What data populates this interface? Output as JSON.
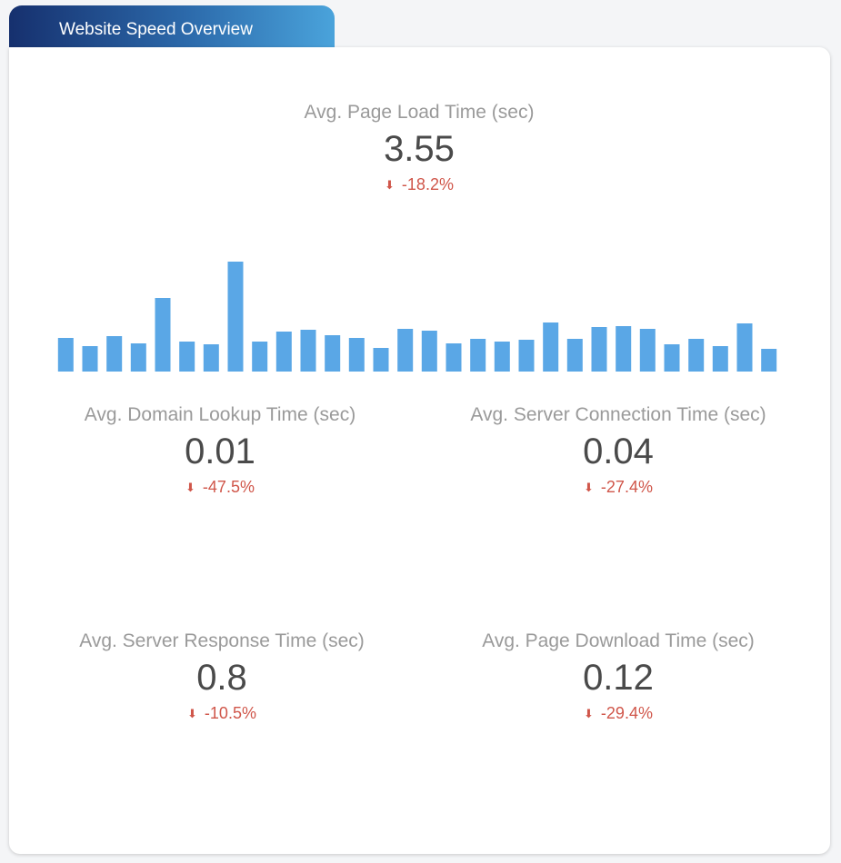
{
  "tab_title": "Website Speed Overview",
  "colors": {
    "bar": "#5aa7e6",
    "negative": "#d0564a"
  },
  "metrics": [
    {
      "label": "Avg. Page Load Time (sec)",
      "value": "3.55",
      "delta": "-18.2%",
      "icon": "arrow-down-icon"
    },
    {
      "label": "Avg. Domain Lookup Time (sec)",
      "value": "0.01",
      "delta": "-47.5%",
      "icon": "arrow-down-icon"
    },
    {
      "label": "Avg. Server Connection Time (sec)",
      "value": "0.04",
      "delta": "-27.4%",
      "icon": "arrow-down-icon"
    },
    {
      "label": "Avg. Server Response Time (sec)",
      "value": "0.8",
      "delta": "-10.5%",
      "icon": "arrow-down-icon"
    },
    {
      "label": "Avg. Page Download Time (sec)",
      "value": "0.12",
      "delta": "-29.4%",
      "icon": "arrow-down-icon"
    }
  ],
  "chart_data": {
    "type": "bar",
    "values": [
      37,
      28,
      39,
      31,
      81,
      33,
      30,
      121,
      33,
      44,
      46,
      40,
      37,
      26,
      47,
      45,
      31,
      36,
      33,
      35,
      54,
      36,
      49,
      50,
      47,
      30,
      36,
      28,
      53,
      25
    ],
    "grid": false,
    "axes": false
  }
}
